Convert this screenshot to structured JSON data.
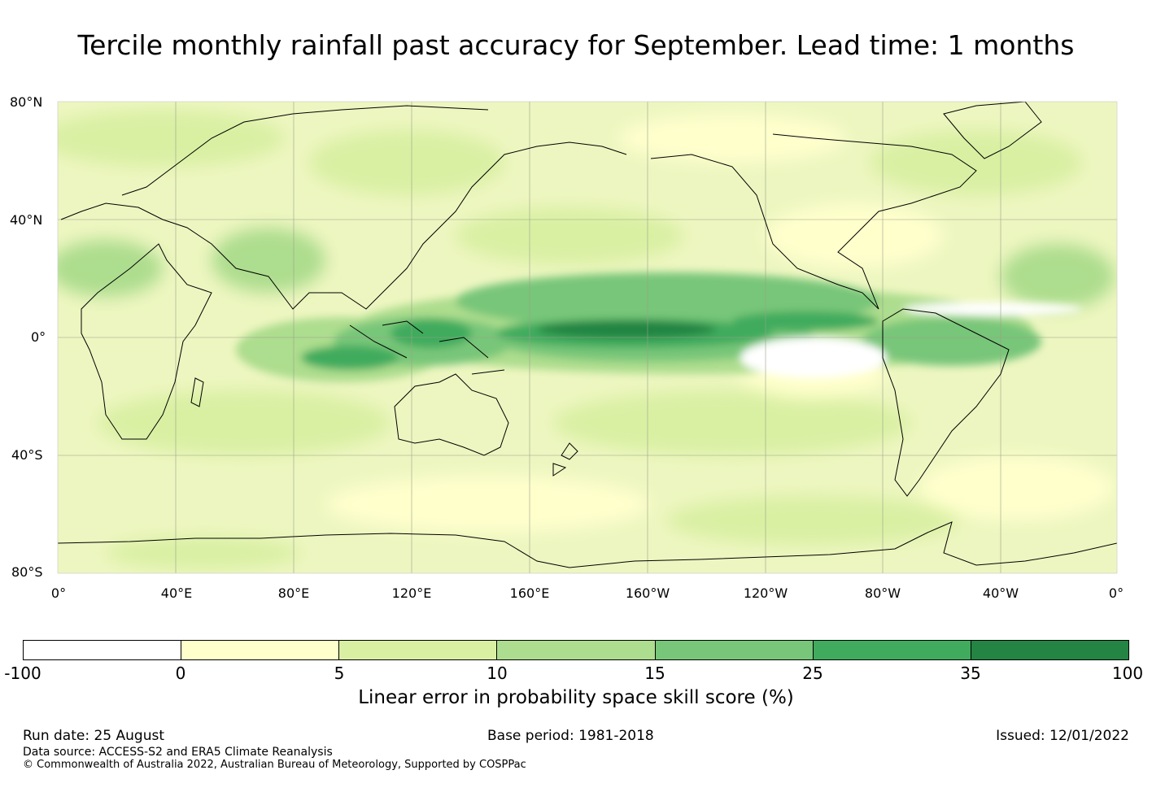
{
  "title": "Tercile monthly rainfall past accuracy for September. Lead time: 1 months",
  "map": {
    "lat_labels": [
      "80°N",
      "40°N",
      "0°",
      "40°S",
      "80°S"
    ],
    "lon_labels": [
      "0°",
      "40°E",
      "80°E",
      "120°E",
      "160°E",
      "160°W",
      "120°W",
      "80°W",
      "40°W",
      "0°"
    ],
    "colors": {
      "ocean_base": "#f4f8d2",
      "coastline": "#000000",
      "gridline": "#9aa08a"
    }
  },
  "colorbar": {
    "ticks": [
      "-100",
      "0",
      "5",
      "10",
      "15",
      "25",
      "35",
      "100"
    ],
    "colors": [
      "#ffffff",
      "#ffffcc",
      "#d9f0a3",
      "#addd8e",
      "#78c679",
      "#41ab5d",
      "#238443"
    ],
    "label": "Linear error in probability space skill score (%)"
  },
  "footer": {
    "run_date": "Run date: 25 August",
    "base_period": "Base period: 1981-2018",
    "issued": "Issued: 12/01/2022",
    "data_source": "Data source: ACCESS-S2 and ERA5 Climate Reanalysis",
    "copyright": "© Commonwealth of Australia 2022, Australian Bureau of Meteorology, Supported by COSPPac"
  }
}
